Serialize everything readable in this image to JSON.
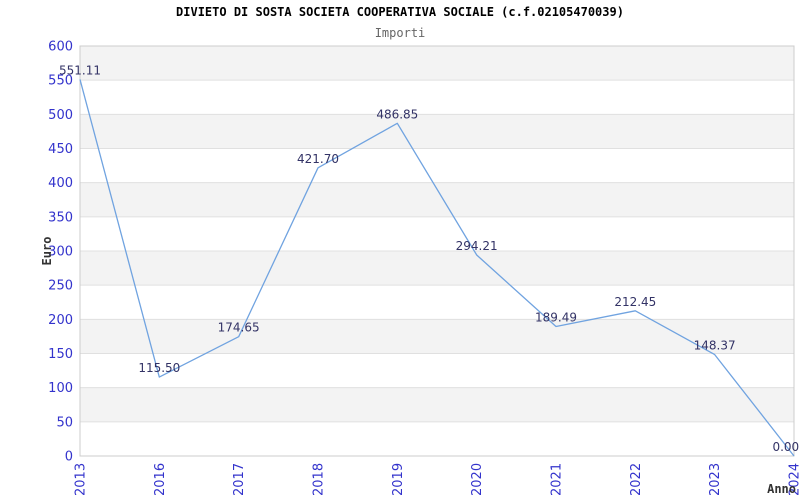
{
  "header": {
    "title": "DIVIETO DI SOSTA SOCIETA COOPERATIVA SOCIALE (c.f.02105470039)",
    "subtitle": "Importi"
  },
  "chart_data": {
    "type": "line",
    "title": "DIVIETO DI SOSTA SOCIETA COOPERATIVA SOCIALE (c.f.02105470039)",
    "subtitle": "Importi",
    "xlabel": "Anno",
    "ylabel": "Euro",
    "categories": [
      "2013",
      "2016",
      "2017",
      "2018",
      "2019",
      "2020",
      "2021",
      "2022",
      "2023",
      "2024"
    ],
    "values": [
      551.11,
      115.5,
      174.65,
      421.7,
      486.85,
      294.21,
      189.49,
      212.45,
      148.37,
      0.0
    ],
    "point_labels": [
      "551.11",
      "115.50",
      "174.65",
      "421.70",
      "486.85",
      "294.21",
      "189.49",
      "212.45",
      "148.37",
      "0.00"
    ],
    "ylim": [
      0,
      600
    ],
    "ytick_step": 50,
    "yticks": [
      0,
      50,
      100,
      150,
      200,
      250,
      300,
      350,
      400,
      450,
      500,
      550,
      600
    ],
    "grid": "horizontal-bands-every-50",
    "legend": "none",
    "markers": "none",
    "colors": {
      "line": "#70a3e0",
      "tick_label": "#3333cc",
      "point_label": "#333366",
      "band": "#f3f3f3",
      "grid_line": "#e0e0e0",
      "plot_border": "#cccccc",
      "axis_title": "#333333",
      "subtitle": "#666666",
      "background": "#ffffff"
    }
  }
}
